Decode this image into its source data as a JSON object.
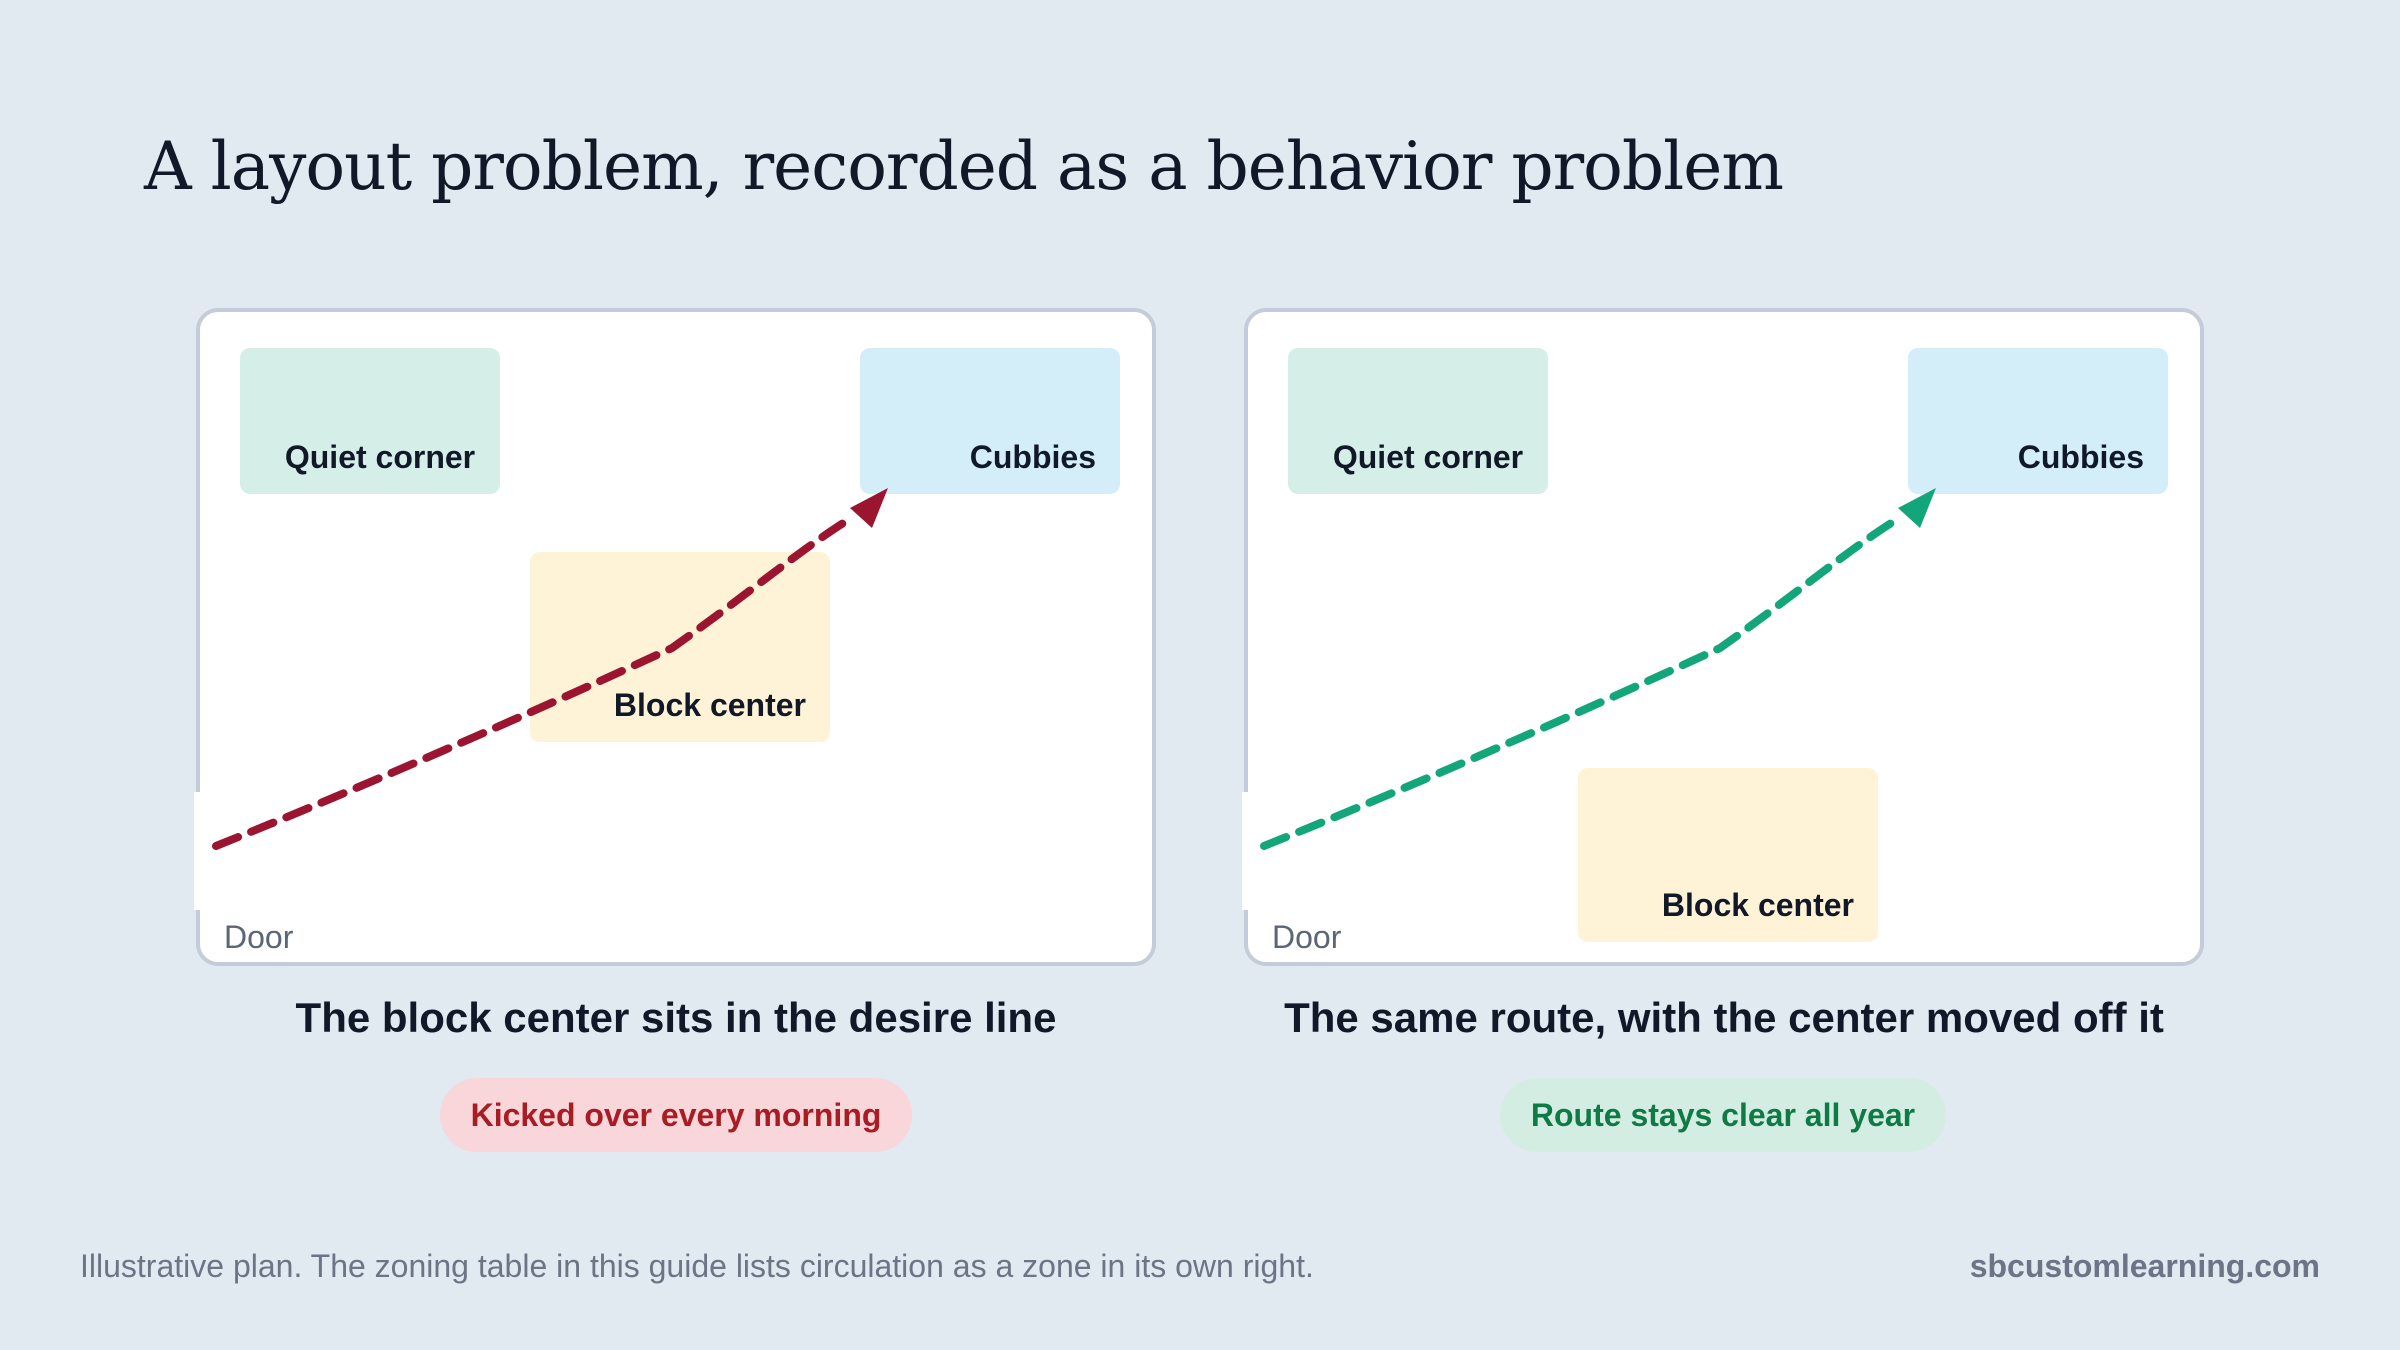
{
  "title": "A layout problem, recorded as a behavior problem",
  "panels": [
    {
      "zones": {
        "quiet_corner": "Quiet corner",
        "cubbies": "Cubbies",
        "block_center": "Block center"
      },
      "door": "Door",
      "route_color": "#9b1530",
      "caption": "The block center sits in the desire line",
      "badge": "Kicked over every morning"
    },
    {
      "zones": {
        "quiet_corner": "Quiet corner",
        "cubbies": "Cubbies",
        "block_center": "Block center"
      },
      "door": "Door",
      "route_color": "#12a67a",
      "caption": "The same route, with the center moved off it",
      "badge": "Route stays clear all year"
    }
  ],
  "colors": {
    "quiet_corner": "#d5efe8",
    "cubbies": "#d3eef9",
    "block_center": "#fef3d7"
  },
  "footer": {
    "note": "Illustrative plan. The zoning table in this guide lists circulation as a zone in its own right.",
    "site": "sbcustomlearning.com"
  }
}
